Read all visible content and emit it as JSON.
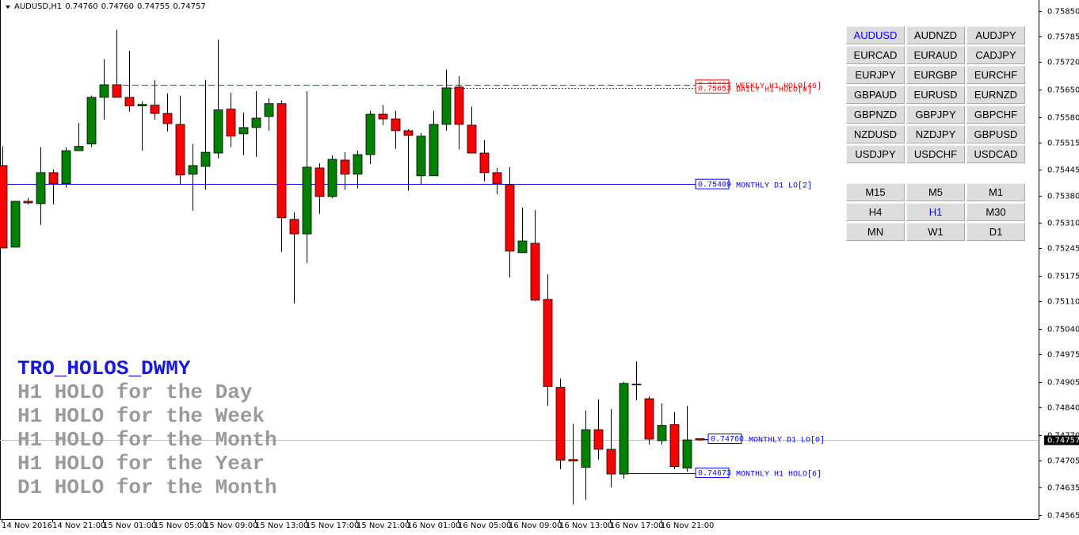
{
  "header": {
    "symbol": "AUDUSD,H1",
    "ohlc": [
      "0.74760",
      "0.74760",
      "0.74755",
      "0.74757"
    ]
  },
  "chart_data": {
    "type": "candlestick",
    "categories": [
      "14 Nov 2016",
      null,
      null,
      null,
      "14 Nov 21:00",
      null,
      null,
      null,
      "15 Nov 01:00",
      null,
      null,
      null,
      "15 Nov 05:00",
      null,
      null,
      null,
      "15 Nov 09:00",
      null,
      null,
      null,
      "15 Nov 13:00",
      null,
      null,
      null,
      "15 Nov 17:00",
      null,
      null,
      null,
      "15 Nov 21:00",
      null,
      null,
      null,
      "16 Nov 01:00",
      null,
      null,
      null,
      "16 Nov 05:00",
      null,
      null,
      null,
      "16 Nov 09:00",
      null,
      null,
      null,
      "16 Nov 13:00",
      null,
      null,
      null,
      "16 Nov 17:00",
      null,
      null,
      null,
      "16 Nov 21:00",
      null,
      null,
      null
    ],
    "open": [
      0.75456,
      0.75248,
      0.75365,
      0.75359,
      0.75438,
      0.7541,
      0.75494,
      0.75511,
      0.7563,
      0.75662,
      0.7563,
      0.75608,
      0.7561,
      0.75589,
      0.75561,
      0.75434,
      0.75454,
      0.75488,
      0.756,
      0.75537,
      0.75553,
      0.75581,
      0.75614,
      0.75319,
      0.75282,
      0.7545,
      0.75377,
      0.7547,
      0.75434,
      0.75484,
      0.75587,
      0.75575,
      0.75545,
      0.7543,
      0.7543,
      0.75561,
      0.75656,
      0.75559,
      0.75488,
      0.75438,
      0.75408,
      0.75234,
      0.75258,
      0.75115,
      0.74891,
      0.74707,
      0.74687,
      0.74783,
      0.74733,
      0.7467,
      0.74897,
      0.74862,
      0.74755,
      0.74796,
      0.74685,
      0.7476
    ],
    "high": [
      0.75505,
      0.75365,
      0.75373,
      0.75503,
      0.75446,
      0.75503,
      0.75565,
      0.75634,
      0.75727,
      0.75802,
      0.75749,
      0.7562,
      0.75674,
      0.7564,
      0.75634,
      0.75511,
      0.75674,
      0.75777,
      0.75642,
      0.75591,
      0.75646,
      0.75628,
      0.75622,
      0.75337,
      0.75646,
      0.75462,
      0.75482,
      0.7549,
      0.75494,
      0.75596,
      0.7561,
      0.75596,
      0.75549,
      0.75539,
      0.75596,
      0.75701,
      0.75684,
      0.75606,
      0.75521,
      0.7545,
      0.75452,
      0.75349,
      0.75343,
      0.75179,
      0.74913,
      0.74798,
      0.74832,
      0.7486,
      0.74836,
      0.74905,
      0.74957,
      0.74868,
      0.7485,
      0.74828,
      0.74844,
      0.7476
    ],
    "low": [
      0.75246,
      0.75248,
      0.75357,
      0.75305,
      0.75357,
      0.754,
      0.75494,
      0.75503,
      0.75573,
      0.7563,
      0.75594,
      0.75494,
      0.75573,
      0.75543,
      0.75408,
      0.75341,
      0.75394,
      0.75474,
      0.75503,
      0.75482,
      0.75478,
      0.75545,
      0.75236,
      0.75105,
      0.75208,
      0.75333,
      0.75373,
      0.75394,
      0.75398,
      0.7546,
      0.75559,
      0.75499,
      0.75392,
      0.75408,
      0.7543,
      0.75545,
      0.75497,
      0.75488,
      0.75416,
      0.75383,
      0.75171,
      0.75234,
      0.75111,
      0.74844,
      0.74682,
      0.74592,
      0.74604,
      0.74707,
      0.74636,
      0.74658,
      0.74858,
      0.74745,
      0.74745,
      0.74682,
      0.74676,
      0.74755
    ],
    "close": [
      0.75246,
      0.75365,
      0.75361,
      0.75438,
      0.7541,
      0.75494,
      0.75505,
      0.7563,
      0.75662,
      0.7563,
      0.75608,
      0.75612,
      0.75589,
      0.75563,
      0.75432,
      0.75456,
      0.7549,
      0.75598,
      0.75531,
      0.75553,
      0.75577,
      0.75614,
      0.75323,
      0.75282,
      0.75452,
      0.75377,
      0.75472,
      0.75434,
      0.75484,
      0.75587,
      0.75575,
      0.75545,
      0.75533,
      0.75531,
      0.75561,
      0.75654,
      0.75561,
      0.75488,
      0.75438,
      0.7541,
      0.75238,
      0.75264,
      0.75113,
      0.74893,
      0.74705,
      0.74703,
      0.74783,
      0.74733,
      0.7467,
      0.74901,
      0.74899,
      0.74759,
      0.74794,
      0.74689,
      0.74757,
      0.74757
    ],
    "up_color": "#008000",
    "down_color": "#ff0000",
    "ylim": [
      0.74555,
      0.75878
    ],
    "yticks": [
      {
        "value": 0.7585,
        "label": "0.75850"
      },
      {
        "value": 0.75785,
        "label": "0.75785"
      },
      {
        "value": 0.7572,
        "label": "0.75720"
      },
      {
        "value": 0.7565,
        "label": "0.75650"
      },
      {
        "value": 0.7558,
        "label": "0.75580"
      },
      {
        "value": 0.75515,
        "label": "0.75515"
      },
      {
        "value": 0.75445,
        "label": "0.75445"
      },
      {
        "value": 0.7538,
        "label": "0.75380"
      },
      {
        "value": 0.7531,
        "label": "0.75310"
      },
      {
        "value": 0.75245,
        "label": "0.75245"
      },
      {
        "value": 0.75175,
        "label": "0.75175"
      },
      {
        "value": 0.7511,
        "label": "0.75110"
      },
      {
        "value": 0.7504,
        "label": "0.75040"
      },
      {
        "value": 0.74975,
        "label": "0.74975"
      },
      {
        "value": 0.74905,
        "label": "0.74905"
      },
      {
        "value": 0.7484,
        "label": "0.74840"
      },
      {
        "value": 0.7477,
        "label": "0.74770"
      },
      {
        "value": 0.74705,
        "label": "0.74705"
      },
      {
        "value": 0.74635,
        "label": "0.74635"
      },
      {
        "value": 0.74565,
        "label": "0.74565"
      }
    ],
    "grid": false,
    "bid": {
      "value": 0.74757,
      "label": "0.74757"
    },
    "levels": [
      {
        "value": 0.75662,
        "label": "0.75662",
        "text": "WEEKLY H1 HOLO[46]",
        "color": "#ff0000",
        "style": "dashed"
      },
      {
        "value": 0.75653,
        "label": "0.75653",
        "text": "DAILY H1 HOLO[8]",
        "color": "#ff0000",
        "style": "dotted"
      },
      {
        "value": 0.75409,
        "label": "0.75409",
        "text": "MONTHLY D1 LO[2]",
        "color": "#0000ff",
        "style": "solid"
      },
      {
        "value": 0.7476,
        "label": "0.74760",
        "text": "MONTHLY D1 LO[0]",
        "color": "#0000ff",
        "style": "solid"
      },
      {
        "value": 0.74673,
        "label": "0.74673",
        "text": "MONTHLY H1 HOLO[6]",
        "color": "#0000ff",
        "style": "solid"
      }
    ]
  },
  "overlay_text": {
    "title": "TRO_HOLOS_DWMY",
    "lines": [
      "H1 HOLO for the Day",
      "H1 HOLO for the Week",
      "H1 HOLO for the Month",
      "H1 HOLO for the Year",
      "D1 HOLO for the Month"
    ]
  },
  "symbols": {
    "items": [
      "AUDUSD",
      "AUDNZD",
      "AUDJPY",
      "EURCAD",
      "EURAUD",
      "CADJPY",
      "EURJPY",
      "EURGBP",
      "EURCHF",
      "GBPAUD",
      "EURUSD",
      "EURNZD",
      "GBPNZD",
      "GBPJPY",
      "GBPCHF",
      "NZDUSD",
      "NZDJPY",
      "GBPUSD",
      "USDJPY",
      "USDCHF",
      "USDCAD"
    ],
    "active_index": 0
  },
  "timeframes": {
    "items": [
      "M15",
      "M5",
      "M1",
      "H4",
      "H1",
      "M30",
      "MN",
      "W1",
      "D1"
    ],
    "active_index": 4
  }
}
